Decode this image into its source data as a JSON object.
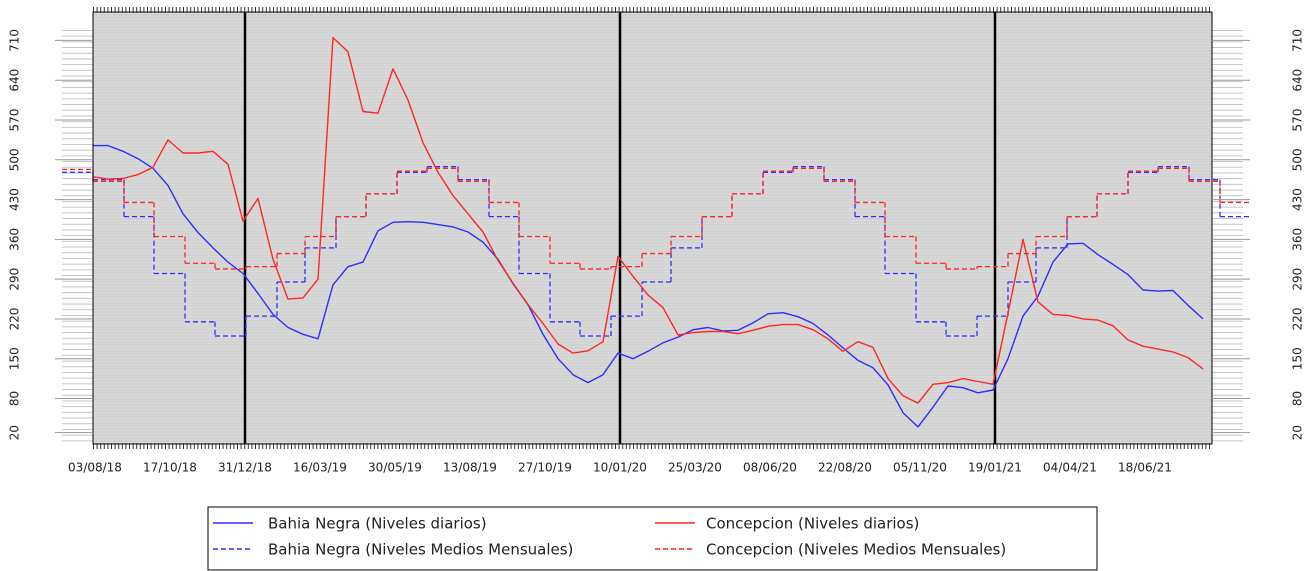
{
  "chart_data": {
    "type": "line",
    "xlim": [
      "01/08/18",
      "24/08/21"
    ],
    "xticks": [
      "03/08/18",
      "17/10/18",
      "31/12/18",
      "16/03/19",
      "30/05/19",
      "13/08/19",
      "27/10/19",
      "10/01/20",
      "25/03/20",
      "08/06/20",
      "22/08/20",
      "05/11/20",
      "19/01/21",
      "04/04/21",
      "18/06/21"
    ],
    "ylim": [
      0,
      760
    ],
    "yticks": [
      20,
      80,
      150,
      220,
      290,
      360,
      430,
      500,
      570,
      640,
      710
    ],
    "series": [
      {
        "name": "Bahia Negra (Niveles diarios)",
        "color": "#2e2eff",
        "dashed": false,
        "x": [
          "01/08/18",
          "16/08/18",
          "31/08/18",
          "15/09/18",
          "30/09/18",
          "15/10/18",
          "30/10/18",
          "14/11/18",
          "29/11/18",
          "14/12/18",
          "29/12/18",
          "13/01/19",
          "28/01/19",
          "12/02/19",
          "27/02/19",
          "14/03/19",
          "29/03/19",
          "13/04/19",
          "28/04/19",
          "13/05/19",
          "28/05/19",
          "12/06/19",
          "27/06/19",
          "12/07/19",
          "27/07/19",
          "11/08/19",
          "26/08/19",
          "10/09/19",
          "25/09/19",
          "10/10/19",
          "25/10/19",
          "09/11/19",
          "24/11/19",
          "09/12/19",
          "24/12/19",
          "08/01/20",
          "23/01/20",
          "07/02/20",
          "22/02/20",
          "08/03/20",
          "23/03/20",
          "07/04/20",
          "22/04/20",
          "07/05/20",
          "22/05/20",
          "06/06/20",
          "21/06/20",
          "06/07/20",
          "21/07/20",
          "05/08/20",
          "20/08/20",
          "04/09/20",
          "19/09/20",
          "04/10/20",
          "19/10/20",
          "03/11/20",
          "18/11/20",
          "03/12/20",
          "18/12/20",
          "02/01/21",
          "17/01/21",
          "01/02/21",
          "16/02/21",
          "03/03/21",
          "18/03/21",
          "02/04/21",
          "17/04/21",
          "02/05/21",
          "17/05/21",
          "01/06/21",
          "16/06/21",
          "01/07/21",
          "16/07/21",
          "31/07/21",
          "15/08/21"
        ],
        "values": [
          525,
          525,
          515,
          502,
          485,
          455,
          405,
          372,
          345,
          320,
          300,
          265,
          228,
          205,
          193,
          185,
          280,
          312,
          320,
          375,
          390,
          391,
          390,
          386,
          382,
          373,
          355,
          325,
          282,
          245,
          193,
          150,
          122,
          108,
          122,
          160,
          150,
          163,
          178,
          188,
          201,
          205,
          199,
          200,
          213,
          229,
          231,
          224,
          212,
          192,
          169,
          147,
          134,
          104,
          55,
          30,
          65,
          102,
          99,
          90,
          95,
          150,
          225,
          260,
          320,
          352,
          353,
          333,
          316,
          298,
          271,
          269,
          270,
          244,
          220
        ]
      },
      {
        "name": "Bahia Negra (Niveles Medios Mensuales)",
        "color": "#2e2eff",
        "dashed": true,
        "x": [
          "01/07/18",
          "01/08/18",
          "01/09/18",
          "01/10/18",
          "01/11/18",
          "01/12/18",
          "01/01/19",
          "01/02/19",
          "01/03/19",
          "01/04/19",
          "01/05/19",
          "01/06/19",
          "01/07/19",
          "01/08/19",
          "01/09/19",
          "01/10/19",
          "01/11/19",
          "01/12/19",
          "01/01/20",
          "01/02/20",
          "01/03/20",
          "01/04/20",
          "01/05/20",
          "01/06/20",
          "01/07/20",
          "01/08/20",
          "01/09/20",
          "01/10/20",
          "01/11/20",
          "01/12/20",
          "01/01/21",
          "01/02/21",
          "01/03/21",
          "01/04/21",
          "01/05/21",
          "01/06/21",
          "01/07/21",
          "01/08/21",
          "01/09/21"
        ],
        "values": [
          478,
          465,
          400,
          300,
          215,
          190,
          225,
          285,
          345,
          400,
          440,
          478,
          488,
          465,
          400,
          300,
          215,
          190,
          225,
          285,
          345,
          400,
          440,
          478,
          488,
          465,
          400,
          300,
          215,
          190,
          225,
          285,
          345,
          400,
          440,
          478,
          488,
          465,
          400
        ]
      },
      {
        "name": "Concepcion (Niveles diarios)",
        "color": "#ff2626",
        "dashed": false,
        "x": [
          "01/08/18",
          "16/08/18",
          "31/08/18",
          "15/09/18",
          "30/09/18",
          "15/10/18",
          "30/10/18",
          "14/11/18",
          "29/11/18",
          "14/12/18",
          "29/12/18",
          "13/01/19",
          "28/01/19",
          "12/02/19",
          "27/02/19",
          "14/03/19",
          "29/03/19",
          "13/04/19",
          "28/04/19",
          "13/05/19",
          "28/05/19",
          "12/06/19",
          "27/06/19",
          "12/07/19",
          "27/07/19",
          "11/08/19",
          "26/08/19",
          "10/09/19",
          "25/09/19",
          "10/10/19",
          "25/10/19",
          "09/11/19",
          "24/11/19",
          "09/12/19",
          "24/12/19",
          "08/01/20",
          "23/01/20",
          "07/02/20",
          "22/02/20",
          "08/03/20",
          "23/03/20",
          "07/04/20",
          "22/04/20",
          "07/05/20",
          "22/05/20",
          "06/06/20",
          "21/06/20",
          "06/07/20",
          "21/07/20",
          "05/08/20",
          "20/08/20",
          "04/09/20",
          "19/09/20",
          "04/10/20",
          "19/10/20",
          "03/11/20",
          "18/11/20",
          "03/12/20",
          "18/12/20",
          "02/01/21",
          "17/01/21",
          "01/02/21",
          "16/02/21",
          "03/03/21",
          "18/03/21",
          "02/04/21",
          "17/04/21",
          "02/05/21",
          "17/05/21",
          "01/06/21",
          "16/06/21",
          "01/07/21",
          "16/07/21",
          "31/07/21",
          "15/08/21"
        ],
        "values": [
          470,
          466,
          467,
          474,
          487,
          535,
          512,
          512,
          515,
          492,
          392,
          432,
          325,
          255,
          257,
          290,
          715,
          690,
          585,
          582,
          660,
          605,
          530,
          478,
          437,
          405,
          373,
          323,
          283,
          245,
          212,
          176,
          160,
          164,
          180,
          330,
          295,
          262,
          240,
          192,
          196,
          198,
          198,
          194,
          200,
          207,
          210,
          210,
          201,
          185,
          163,
          180,
          170,
          115,
          85,
          72,
          105,
          108,
          115,
          110,
          105,
          230,
          360,
          250,
          228,
          226,
          220,
          218,
          208,
          183,
          172,
          167,
          162,
          152,
          132
        ]
      },
      {
        "name": "Concepcion (Niveles Medios Mensuales)",
        "color": "#ff2626",
        "dashed": true,
        "x": [
          "01/07/18",
          "01/08/18",
          "01/09/18",
          "01/10/18",
          "01/11/18",
          "01/12/18",
          "01/01/19",
          "01/02/19",
          "01/03/19",
          "01/04/19",
          "01/05/19",
          "01/06/19",
          "01/07/19",
          "01/08/19",
          "01/09/19",
          "01/10/19",
          "01/11/19",
          "01/12/19",
          "01/01/20",
          "01/02/20",
          "01/03/20",
          "01/04/20",
          "01/05/20",
          "01/06/20",
          "01/07/20",
          "01/08/20",
          "01/09/20",
          "01/10/20",
          "01/11/20",
          "01/12/20",
          "01/01/21",
          "01/02/21",
          "01/03/21",
          "01/04/21",
          "01/05/21",
          "01/06/21",
          "01/07/21",
          "01/08/21",
          "01/09/21"
        ],
        "values": [
          483,
          462,
          425,
          365,
          318,
          308,
          312,
          335,
          365,
          400,
          440,
          480,
          485,
          462,
          425,
          365,
          318,
          308,
          312,
          335,
          365,
          400,
          440,
          480,
          485,
          462,
          425,
          365,
          318,
          308,
          312,
          335,
          365,
          400,
          440,
          480,
          485,
          462,
          425
        ]
      }
    ]
  }
}
